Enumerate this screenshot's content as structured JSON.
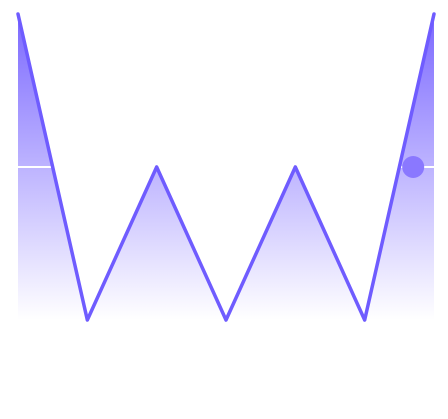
{
  "chart_data": {
    "type": "area",
    "series": [
      {
        "values": [
          4,
          0,
          2,
          0,
          2,
          0,
          4
        ]
      }
    ],
    "ylim": [
      0,
      4
    ],
    "grid": false,
    "legend": "none",
    "reference_line": {
      "y": 2
    },
    "highlight_point": {
      "x": 5.7,
      "y": 2
    },
    "colors": {
      "line": "#6f5cff",
      "fill_top": "#7b68ff",
      "fill_bottom": "#ffffff",
      "reference_line": "#ffffff",
      "marker": "#8a78ff"
    }
  }
}
